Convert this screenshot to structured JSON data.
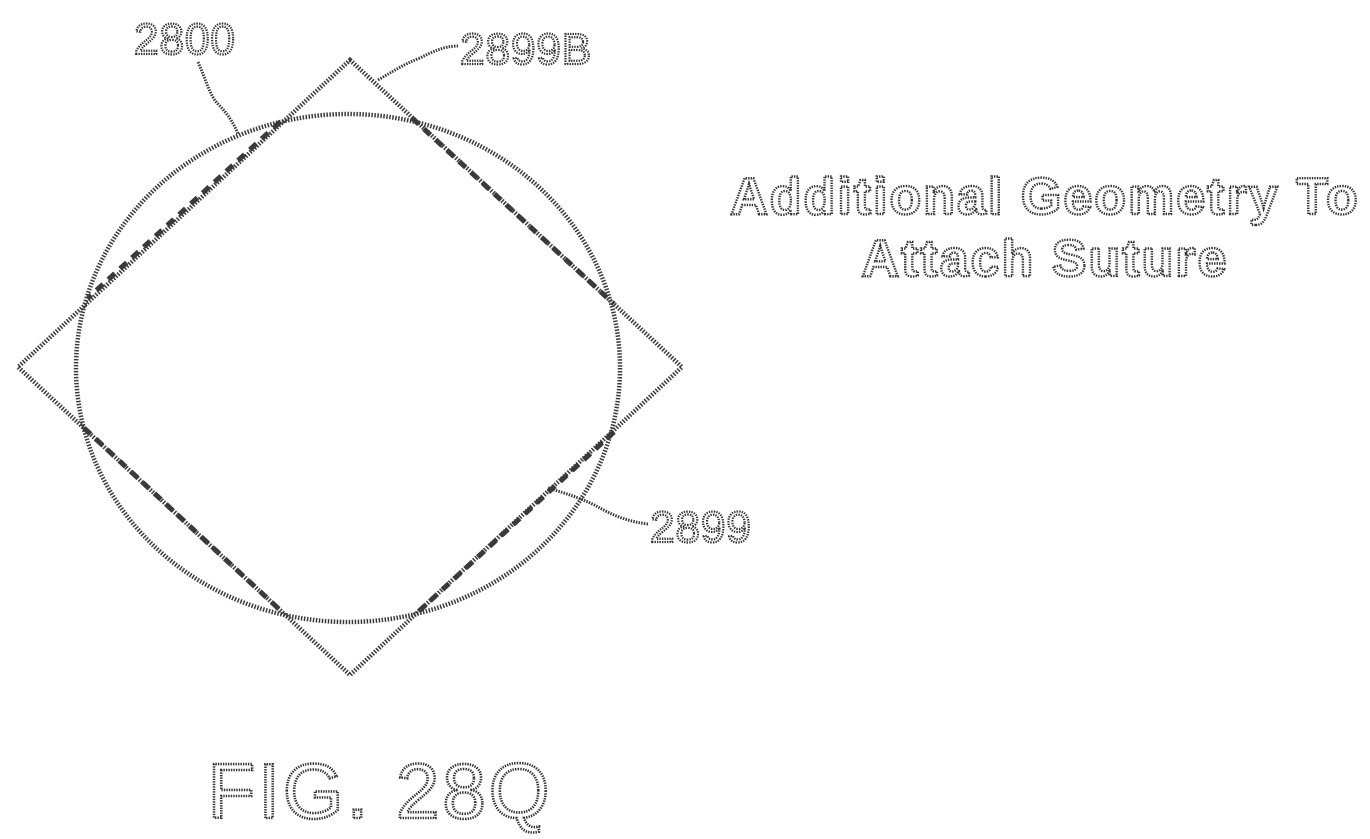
{
  "labels": {
    "ref_2800": "2800",
    "ref_2899B": "2899B",
    "ref_2899": "2899",
    "annotation_line1": "Additional Geometry To",
    "annotation_line2": "Attach Suture",
    "figure_caption": "FIG. 28Q"
  }
}
